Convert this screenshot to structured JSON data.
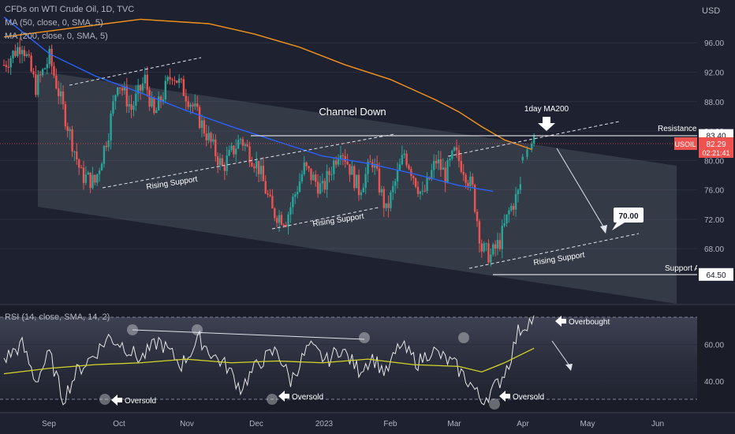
{
  "header": {
    "title": "CFDs on WTI Crude Oil, 1D, TVC",
    "ma50": "MA (50, close, 0, SMA, 5)",
    "ma200": "MA (200, close, 0, SMA, 5)",
    "rsi": "RSI (14, close, SMA, 14, 2)",
    "currency": "USD"
  },
  "chart_data": [
    {
      "type": "candlestick",
      "title": "CFDs on WTI Crude Oil, 1D, TVC",
      "x_ticks": [
        "Sep",
        "Oct",
        "Nov",
        "Dec",
        "2023",
        "Feb",
        "Mar",
        "Apr",
        "May",
        "Jun"
      ],
      "y_ticks": [
        68.0,
        72.0,
        76.0,
        80.0,
        84.0,
        88.0,
        92.0,
        96.0
      ],
      "ylim": [
        62,
        100
      ],
      "annotations": {
        "channel_label": "Channel Down",
        "ma_label": "1day MA200",
        "rising_support": "Rising Support",
        "resistance_label": "Resistance A",
        "support_label": "Support A",
        "target": "70.00"
      },
      "levels": {
        "resistance": 83.4,
        "support": 64.5,
        "last_price": 82.29
      },
      "price_tag": {
        "symbol": "USOIL",
        "price": "82.29",
        "countdown": "02:21:41"
      },
      "resistance_tag": "83.40",
      "support_tag": "64.50",
      "colors": {
        "up": "#26a69a",
        "down": "#ef5350",
        "ma50": "#2962ff",
        "ma200": "#f7931a",
        "rsi": "#e6e6e6",
        "rsi_ma": "#d4d42a"
      },
      "series": [
        {
          "name": "MA (50)",
          "x": [
            0,
            20,
            40,
            60,
            80,
            100,
            120,
            140,
            160,
            180,
            200,
            215
          ],
          "values": [
            99.5,
            94.5,
            91.5,
            89.2,
            86.8,
            84.6,
            82.6,
            80.6,
            79.6,
            78.2,
            76.6,
            75.8
          ]
        },
        {
          "name": "MA (200)",
          "x": [
            0,
            30,
            60,
            90,
            110,
            130,
            150,
            170,
            190,
            200,
            210,
            220,
            232
          ],
          "values": [
            96.8,
            98.0,
            99.2,
            98.6,
            97.2,
            95.4,
            93.0,
            91.0,
            88.2,
            86.6,
            84.6,
            82.8,
            81.5
          ]
        }
      ],
      "waypoints": {
        "days": [
          0,
          8,
          14,
          20,
          26,
          34,
          40,
          46,
          50,
          56,
          62,
          66,
          74,
          82,
          90,
          96,
          104,
          112,
          118,
          124,
          132,
          140,
          148,
          156,
          162,
          168,
          176,
          184,
          190,
          194,
          198,
          202,
          206,
          210,
          214,
          218,
          222,
          226,
          230
        ],
        "closes": [
          93,
          96,
          90,
          94,
          87,
          78,
          77,
          84,
          91,
          87,
          91,
          86,
          92,
          88,
          83,
          79,
          83,
          79,
          73,
          72,
          79,
          76,
          82,
          76,
          80,
          73,
          81,
          75,
          80,
          78,
          81,
          79,
          76,
          68,
          67,
          69,
          73,
          75.5,
          80.5
        ]
      },
      "extra_candles": {
        "days": [
          228,
          230,
          232,
          233
        ],
        "open": [
          80,
          80.5,
          81.5,
          82.3
        ],
        "close": [
          80.5,
          81.5,
          82.3,
          83.3
        ]
      }
    },
    {
      "type": "line",
      "title": "RSI (14, close, SMA, 14, 2)",
      "y_ticks": [
        40.0,
        60.0
      ],
      "ylim": [
        25,
        78
      ],
      "annotations": {
        "oversold": "Oversold",
        "overbought": "Overbought"
      },
      "waypoints": {
        "days": [
          0,
          8,
          14,
          20,
          26,
          32,
          40,
          46,
          52,
          60,
          68,
          78,
          86,
          92,
          98,
          104,
          112,
          120,
          126,
          134,
          142,
          148,
          156,
          162,
          168,
          174,
          182,
          188,
          194,
          198,
          202,
          206,
          210,
          214,
          218,
          222,
          226,
          230,
          233
        ],
        "rsi": [
          52,
          60,
          40,
          55,
          30,
          45,
          55,
          64,
          60,
          52,
          62,
          49,
          63,
          54,
          48,
          36,
          50,
          57,
          40,
          59,
          51,
          58,
          46,
          53,
          44,
          60,
          50,
          57,
          52,
          49,
          43,
          37,
          29,
          34,
          40,
          50,
          67,
          72,
          74
        ]
      },
      "series": [
        {
          "name": "RSI MA",
          "x": [
            0,
            20,
            40,
            60,
            80,
            100,
            120,
            140,
            160,
            180,
            200,
            210,
            220,
            233
          ],
          "values": [
            44,
            47,
            49,
            50,
            52,
            50,
            51,
            50,
            52,
            49,
            48,
            45,
            50,
            58
          ]
        }
      ]
    }
  ]
}
